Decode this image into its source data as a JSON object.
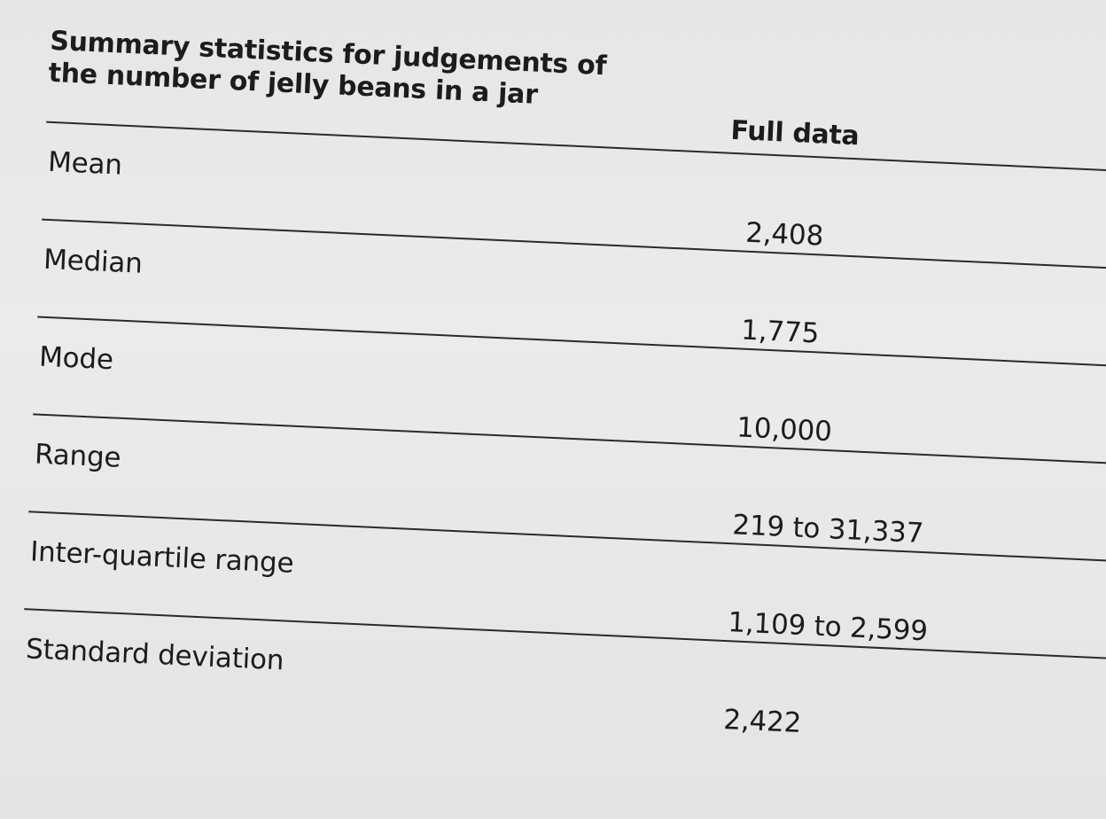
{
  "table": {
    "caption": "Summary statistics for judgements of the number of jelly beans in a jar",
    "column_header": "Full data",
    "rows": [
      {
        "label": "Mean",
        "value": "2,408"
      },
      {
        "label": "Median",
        "value": "1,775"
      },
      {
        "label": "Mode",
        "value": "10,000"
      },
      {
        "label": "Range",
        "value": "219 to 31,337"
      },
      {
        "label": "Inter-quartile range",
        "value": "1,109 to 2,599"
      },
      {
        "label": "Standard deviation",
        "value": "2,422"
      }
    ]
  }
}
